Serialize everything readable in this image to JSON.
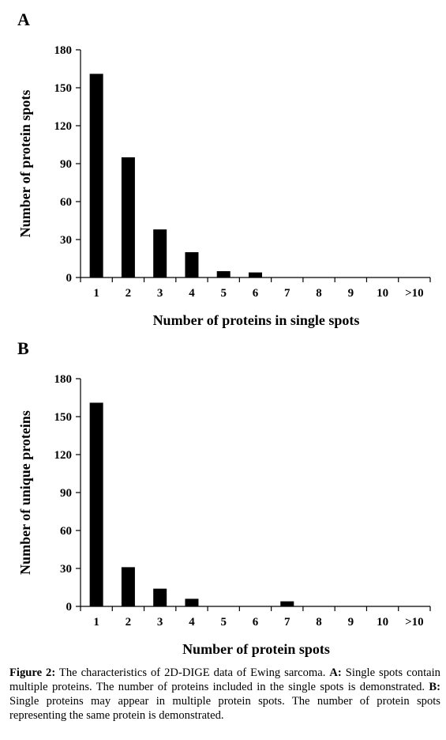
{
  "panels": [
    {
      "letter": "A",
      "chart_data": {
        "type": "bar",
        "categories": [
          "1",
          "2",
          "3",
          "4",
          "5",
          "6",
          "7",
          "8",
          "9",
          "10",
          ">10"
        ],
        "values": [
          161,
          95,
          38,
          20,
          5,
          4,
          0,
          0,
          0,
          0,
          0
        ],
        "xlabel": "Number of proteins in single spots",
        "ylabel": "Number of protein spots",
        "ylim": [
          0,
          180
        ],
        "yticks": [
          0,
          30,
          60,
          90,
          120,
          150,
          180
        ],
        "grid": false
      }
    },
    {
      "letter": "B",
      "chart_data": {
        "type": "bar",
        "categories": [
          "1",
          "2",
          "3",
          "4",
          "5",
          "6",
          "7",
          "8",
          "9",
          "10",
          ">10"
        ],
        "values": [
          161,
          31,
          14,
          6,
          0,
          0,
          4,
          0,
          0,
          0,
          0
        ],
        "xlabel": "Number of protein spots",
        "ylabel": "Number of unique proteins",
        "ylim": [
          0,
          180
        ],
        "yticks": [
          0,
          30,
          60,
          90,
          120,
          150,
          180
        ],
        "grid": false
      }
    }
  ],
  "caption": {
    "label": "Figure 2:",
    "text1": " The characteristics of 2D-DIGE data of Ewing sarcoma. ",
    "a_label": "A:",
    "text2": " Single spots contain multiple proteins. The number of proteins included in the single spots is demonstrated. ",
    "b_label": "B:",
    "text3": " Single proteins may appear in multiple protein spots. The number of protein spots representing the same protein is demonstrated."
  }
}
